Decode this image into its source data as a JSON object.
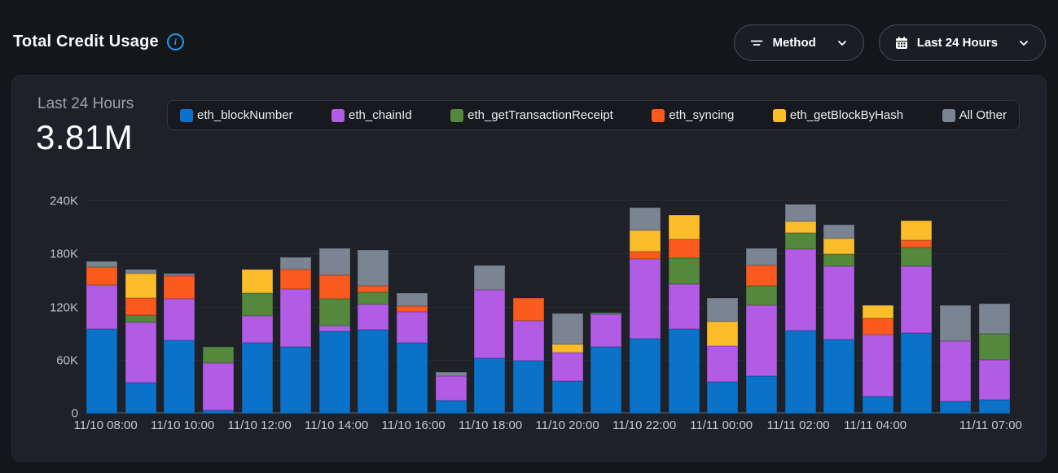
{
  "header": {
    "title": "Total Credit Usage",
    "filters": {
      "method": {
        "label": "Method",
        "icon": "filter-lines-icon"
      },
      "time_range": {
        "label": "Last 24 Hours",
        "icon": "calendar-icon"
      }
    }
  },
  "panel": {
    "metric_label": "Last 24 Hours",
    "metric_value": "3.81M"
  },
  "colors": {
    "accent_info": "#1f9cf0",
    "page_bg": "#14161a",
    "panel_bg": "#1e2127",
    "grid": "#282c32",
    "axis_text": "#c7cbd0"
  },
  "chart_data": {
    "type": "bar",
    "stacked": true,
    "title": "Total Credit Usage — Last 24 Hours",
    "total_display": "3.81M",
    "unit_note": "values in thousands of credits (K)",
    "ylim_k": [
      0,
      240
    ],
    "yticks": [
      {
        "value_k": 0,
        "label": "0"
      },
      {
        "value_k": 60,
        "label": "60K"
      },
      {
        "value_k": 120,
        "label": "120K"
      },
      {
        "value_k": 180,
        "label": "180K"
      },
      {
        "value_k": 240,
        "label": "240K"
      }
    ],
    "legend_position": "top",
    "series": [
      {
        "name": "eth_blockNumber",
        "color": "#0a72c8"
      },
      {
        "name": "eth_chainId",
        "color": "#b25ce6"
      },
      {
        "name": "eth_getTransactionReceipt",
        "color": "#53883d"
      },
      {
        "name": "eth_syncing",
        "color": "#fb5a1e"
      },
      {
        "name": "eth_getBlockByHash",
        "color": "#fcbd2b"
      },
      {
        "name": "All Other",
        "color": "#7b8492"
      }
    ],
    "bar_count": 24,
    "x_tick_labels": [
      {
        "index": 0,
        "label": "11/10 08:00"
      },
      {
        "index": 2,
        "label": "11/10 10:00"
      },
      {
        "index": 4,
        "label": "11/10 12:00"
      },
      {
        "index": 6,
        "label": "11/10 14:00"
      },
      {
        "index": 8,
        "label": "11/10 16:00"
      },
      {
        "index": 10,
        "label": "11/10 18:00"
      },
      {
        "index": 12,
        "label": "11/10 20:00"
      },
      {
        "index": 14,
        "label": "11/10 22:00"
      },
      {
        "index": 16,
        "label": "11/11 00:00"
      },
      {
        "index": 18,
        "label": "11/11 02:00"
      },
      {
        "index": 20,
        "label": "11/11 04:00"
      },
      {
        "index": 23,
        "label": "11/11 07:00"
      }
    ],
    "bars_values_k": [
      [
        96,
        49,
        0,
        21,
        0,
        6
      ],
      [
        35,
        68,
        8,
        20,
        27,
        5
      ],
      [
        83,
        47,
        0,
        25,
        0,
        3
      ],
      [
        4,
        53,
        18,
        0,
        0,
        0
      ],
      [
        80,
        30,
        26,
        0,
        27,
        0
      ],
      [
        75,
        66,
        0,
        22,
        0,
        14
      ],
      [
        93,
        6,
        31,
        26,
        0,
        31
      ],
      [
        95,
        28,
        14,
        7,
        0,
        41
      ],
      [
        80,
        35,
        0,
        6,
        0,
        15
      ],
      [
        15,
        27,
        0,
        0,
        0,
        5
      ],
      [
        63,
        77,
        0,
        0,
        0,
        27
      ],
      [
        60,
        45,
        0,
        26,
        0,
        0
      ],
      [
        37,
        32,
        0,
        0,
        9,
        35
      ],
      [
        75,
        37,
        2,
        0,
        0,
        0
      ],
      [
        85,
        90,
        0,
        8,
        24,
        26
      ],
      [
        96,
        50,
        30,
        21,
        27,
        0
      ],
      [
        36,
        40,
        0,
        0,
        28,
        27
      ],
      [
        42,
        80,
        22,
        23,
        0,
        20
      ],
      [
        94,
        92,
        18,
        0,
        13,
        19
      ],
      [
        84,
        82,
        14,
        0,
        18,
        15
      ],
      [
        19,
        70,
        0,
        19,
        14,
        0
      ],
      [
        91,
        75,
        22,
        8,
        22,
        0
      ],
      [
        14,
        68,
        0,
        0,
        0,
        40
      ],
      [
        16,
        45,
        29,
        0,
        0,
        34
      ]
    ]
  }
}
